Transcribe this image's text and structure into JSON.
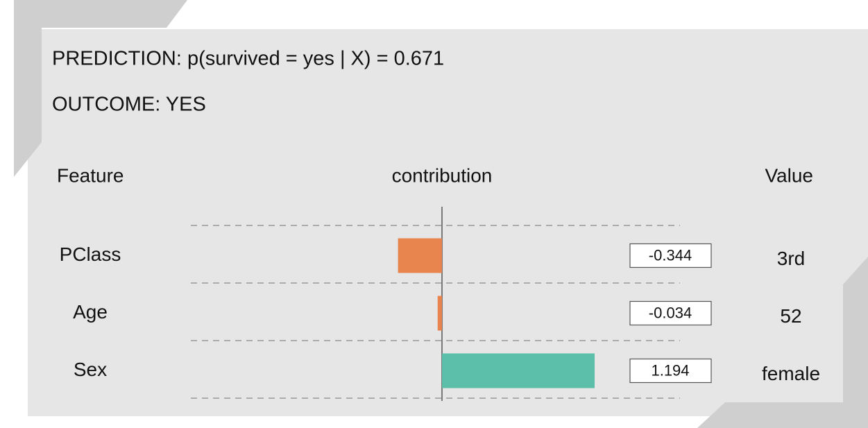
{
  "chart_data": {
    "type": "bar",
    "title": "PREDICTION: p(survived = yes | X) = 0.671",
    "subtitle": "OUTCOME: YES",
    "feature_header": "Feature",
    "contribution_header": "contribution",
    "value_header": "Value",
    "categories": [
      "PClass",
      "Age",
      "Sex"
    ],
    "values": [
      -0.344,
      -0.034,
      1.194
    ],
    "feature_values": [
      "3rd",
      "52",
      "female"
    ],
    "color_negative": "#e8854e",
    "color_positive": "#5bbfaa"
  }
}
